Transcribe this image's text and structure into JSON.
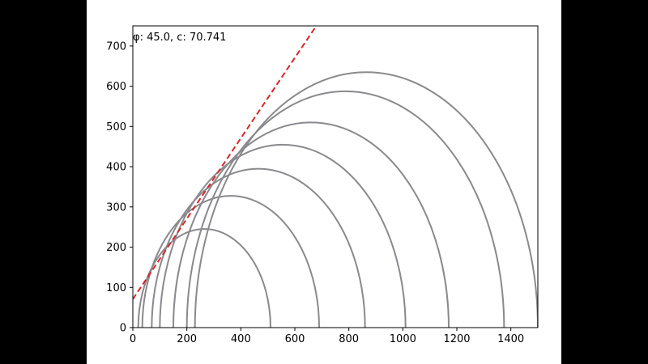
{
  "colors": {
    "background": "#000000",
    "figure": "#ffffff",
    "circle": "#8a8a8e",
    "envelope": "#d62728",
    "axis": "#000000"
  },
  "chart_data": {
    "type": "line",
    "title": "",
    "xlabel": "",
    "ylabel": "",
    "xlim": [
      0,
      1500
    ],
    "ylim": [
      0,
      750
    ],
    "grid": false,
    "xticks": [
      0,
      200,
      400,
      600,
      800,
      1000,
      1200,
      1400
    ],
    "yticks": [
      0,
      100,
      200,
      300,
      400,
      500,
      600,
      700
    ],
    "annotation": "φ: 45.0, c: 70.741",
    "envelope": {
      "style": "dashed",
      "intercept": 70.741,
      "slope": 1.0
    },
    "mohr_circles": [
      {
        "sigma3": 20,
        "sigma1": 510
      },
      {
        "sigma3": 35,
        "sigma1": 690
      },
      {
        "sigma3": 70,
        "sigma1": 860
      },
      {
        "sigma3": 100,
        "sigma1": 1010
      },
      {
        "sigma3": 150,
        "sigma1": 1170
      },
      {
        "sigma3": 200,
        "sigma1": 1375
      },
      {
        "sigma3": 230,
        "sigma1": 1500
      }
    ]
  }
}
